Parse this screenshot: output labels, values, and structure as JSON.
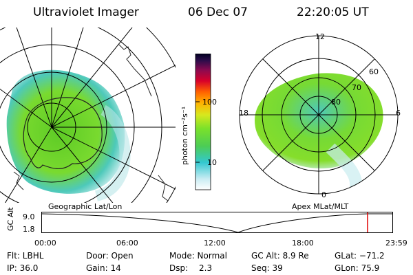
{
  "header": {
    "instrument": "Ultraviolet Imager",
    "date": "06 Dec 07",
    "time": "22:20:05 UT"
  },
  "left_panel": {
    "label": "Geographic Lat/Lon"
  },
  "right_panel": {
    "label": "Apex MLat/MLT",
    "mlt_labels": [
      "12",
      "18",
      "6",
      "0"
    ],
    "lat_labels": [
      "60",
      "70",
      "80"
    ]
  },
  "colorbar": {
    "unit_label": "photon cm⁻²s⁻¹",
    "ticks": [
      "100",
      "10"
    ]
  },
  "altitude_plot": {
    "ylabel": "GC Alt",
    "yticks": [
      "9.0",
      "1.8"
    ],
    "xticks": [
      "00:00",
      "06:00",
      "12:00",
      "18:00",
      "23:59"
    ]
  },
  "params": {
    "filter": "Flt: LBHL",
    "door": "Door: Open",
    "mode": "Mode: Normal",
    "gc_alt": "GC Alt: 8.9 Re",
    "glat": "GLat: −71.2",
    "ip": "IP: 36.0",
    "gain": "Gain: 14",
    "dsp_label": "Dsp:",
    "dsp_value": "2.3",
    "seq": "Seq: 39",
    "glon": "GLon: 75.9"
  },
  "colors": {
    "aurora_green": "#66d11e",
    "aurora_teal": "#3fc8c0",
    "marker_red": "#e00000"
  }
}
